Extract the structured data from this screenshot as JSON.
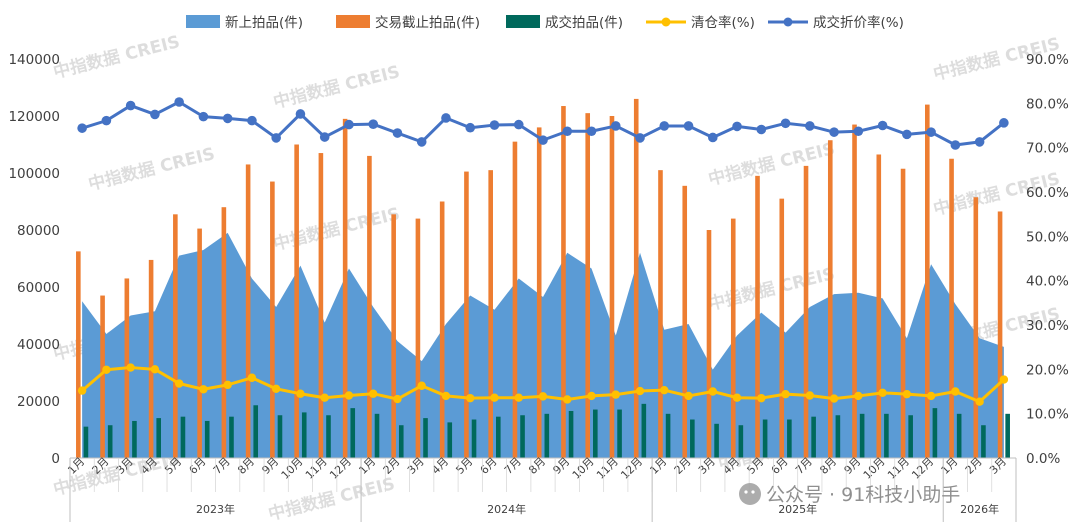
{
  "chart_data": {
    "type": "bar",
    "legend_position": "top",
    "grid": false,
    "months": [
      "1月",
      "2月",
      "3月",
      "4月",
      "5月",
      "6月",
      "7月",
      "8月",
      "9月",
      "10月",
      "11月",
      "12月",
      "1月",
      "2月",
      "3月",
      "4月",
      "5月",
      "6月",
      "7月",
      "8月",
      "9月",
      "10月",
      "11月",
      "12月",
      "1月",
      "2月",
      "3月",
      "4月",
      "5月",
      "6月",
      "7月",
      "8月",
      "9月",
      "10月",
      "11月",
      "12月",
      "1月",
      "2月",
      "3月"
    ],
    "years": [
      {
        "label": "2023年",
        "count": 12
      },
      {
        "label": "2024年",
        "count": 12
      },
      {
        "label": "2025年",
        "count": 12
      },
      {
        "label": "2026年",
        "count": 3
      }
    ],
    "y_left": {
      "min": 0,
      "max": 140000,
      "ticks": [
        "0",
        "20000",
        "40000",
        "60000",
        "80000",
        "100000",
        "120000",
        "140000"
      ]
    },
    "y_right": {
      "min": 0,
      "max": 0.9,
      "ticks": [
        "0.0%",
        "10.0%",
        "20.0%",
        "30.0%",
        "40.0%",
        "50.0%",
        "60.0%",
        "70.0%",
        "80.0%",
        "90.0%"
      ]
    },
    "series": [
      {
        "name": "新上拍品(件)",
        "type": "area",
        "axis": "left",
        "color": "#5b9bd5",
        "values": [
          55000,
          43500,
          50000,
          51500,
          71000,
          73000,
          79000,
          63000,
          53000,
          67500,
          47500,
          66500,
          53000,
          41000,
          34000,
          47000,
          57000,
          52000,
          63000,
          56500,
          72000,
          66500,
          43000,
          72000,
          45000,
          47000,
          31000,
          43000,
          51000,
          44000,
          53000,
          57500,
          58000,
          56000,
          42000,
          68000,
          54000,
          42000,
          39000
        ]
      },
      {
        "name": "交易截止拍品(件)",
        "type": "bar",
        "axis": "left",
        "color": "#ed7d31",
        "values": [
          72500,
          57000,
          63000,
          69500,
          85500,
          80500,
          88000,
          103000,
          97000,
          110000,
          107000,
          119000,
          106000,
          85500,
          84000,
          90000,
          100500,
          101000,
          111000,
          116000,
          123500,
          121000,
          120000,
          126000,
          101000,
          95500,
          80000,
          84000,
          99000,
          91000,
          102500,
          111500,
          117000,
          106500,
          101500,
          124000,
          105000,
          91500,
          86500
        ]
      },
      {
        "name": "成交拍品(件)",
        "type": "bar",
        "axis": "left",
        "color": "#00695c",
        "values": [
          11000,
          11500,
          13000,
          14000,
          14500,
          13000,
          14500,
          18500,
          15000,
          16000,
          15000,
          17500,
          15500,
          11500,
          14000,
          12500,
          13500,
          14500,
          15000,
          15500,
          16500,
          17000,
          17000,
          19000,
          15500,
          13500,
          12000,
          11500,
          13500,
          13500,
          14500,
          15000,
          15500,
          15500,
          15000,
          17500,
          15500,
          11500,
          15500
        ]
      },
      {
        "name": "清仓率(%)",
        "type": "line",
        "axis": "right",
        "color": "#ffc000",
        "values": [
          0.152,
          0.199,
          0.204,
          0.2,
          0.168,
          0.155,
          0.165,
          0.181,
          0.156,
          0.145,
          0.136,
          0.141,
          0.145,
          0.133,
          0.163,
          0.14,
          0.135,
          0.136,
          0.136,
          0.139,
          0.132,
          0.14,
          0.143,
          0.151,
          0.153,
          0.14,
          0.15,
          0.136,
          0.135,
          0.144,
          0.141,
          0.134,
          0.14,
          0.147,
          0.144,
          0.14,
          0.15,
          0.127,
          0.177
        ]
      },
      {
        "name": "成交折价率(%)",
        "type": "line",
        "axis": "right",
        "color": "#4472c4",
        "values": [
          0.744,
          0.761,
          0.795,
          0.775,
          0.803,
          0.77,
          0.766,
          0.761,
          0.722,
          0.776,
          0.724,
          0.752,
          0.753,
          0.733,
          0.713,
          0.767,
          0.745,
          0.751,
          0.752,
          0.717,
          0.737,
          0.737,
          0.749,
          0.722,
          0.749,
          0.749,
          0.723,
          0.748,
          0.741,
          0.755,
          0.749,
          0.735,
          0.737,
          0.75,
          0.73,
          0.735,
          0.706,
          0.713,
          0.756
        ]
      }
    ]
  },
  "watermark": {
    "text": "中指数据 CREIS",
    "color": "#9a9a9a"
  },
  "footer": {
    "account": "公众号 · 91科技小助手",
    "icon": "wechat-icon"
  }
}
